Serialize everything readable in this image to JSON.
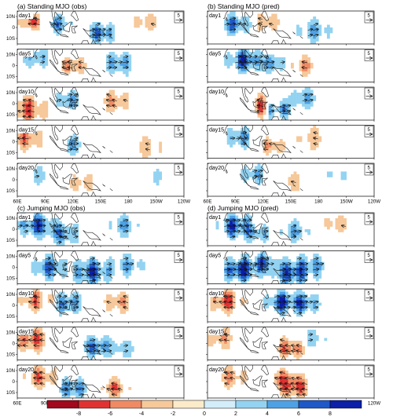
{
  "figure": {
    "colors": {
      "negative": [
        "#a1091c",
        "#e03331",
        "#f08a64",
        "#f6c89a",
        "#fcebc8"
      ],
      "neutral": "#ffffff",
      "positive": [
        "#d3eefa",
        "#93d3f1",
        "#4ea1e4",
        "#1f59c8",
        "#0c1fa8"
      ],
      "coast": "#222222",
      "vector": "#111111"
    }
  },
  "panels": [
    {
      "title": "(a) Standing MJO (obs)",
      "days": [
        "day1",
        "day5",
        "day10",
        "day15",
        "day20"
      ],
      "ref_vector": "5"
    },
    {
      "title": "(b) Standing MJO (pred)",
      "days": [
        "day1",
        "day5",
        "day10",
        "day15",
        "day20"
      ],
      "ref_vector": "5"
    },
    {
      "title": "(c) Jumping MJO (obs)",
      "days": [
        "day1",
        "day5",
        "day10",
        "day15",
        "day20"
      ],
      "ref_vector": "5"
    },
    {
      "title": "(d) Jumping MJO (pred)",
      "days": [
        "day1",
        "day5",
        "day10",
        "day15",
        "day20"
      ],
      "ref_vector": "5"
    }
  ],
  "chart_data": {
    "type": "heatmap",
    "x_ticks": [
      "60E",
      "90E",
      "120E",
      "150E",
      "180",
      "150W",
      "120W"
    ],
    "y_ticks": [
      "10N",
      "0",
      "10S"
    ],
    "colorbar": {
      "levels": [
        "-8",
        "-6",
        "-4",
        "-2",
        "0",
        "2",
        "4",
        "6",
        "8"
      ],
      "min": -10,
      "max": 10
    },
    "anomaly_centers": [
      [
        [
          [
            -6,
            75,
            5,
            7
          ],
          [
            5,
            105,
            3,
            8
          ],
          [
            6,
            150,
            -5,
            9
          ],
          [
            -3,
            200,
            5,
            10
          ]
        ],
        [
          [
            4,
            80,
            8,
            10
          ],
          [
            -5,
            120,
            0,
            8
          ],
          [
            5,
            170,
            2,
            10
          ]
        ],
        [
          [
            -6,
            70,
            -5,
            12
          ],
          [
            5,
            115,
            3,
            8
          ],
          [
            -4,
            165,
            2,
            10
          ]
        ],
        [
          [
            -5,
            70,
            3,
            10
          ],
          [
            4,
            120,
            -3,
            9
          ],
          [
            -3,
            200,
            -5,
            12
          ]
        ],
        [
          [
            3,
            85,
            4,
            9
          ],
          [
            -3,
            130,
            -3,
            10
          ],
          [
            2,
            210,
            3,
            12
          ]
        ]
      ],
      [
        [
          [
            6,
            90,
            3,
            9
          ],
          [
            -4,
            125,
            5,
            8
          ],
          [
            4,
            175,
            -3,
            11
          ]
        ],
        [
          [
            7,
            100,
            5,
            10
          ],
          [
            5,
            130,
            2,
            8
          ],
          [
            -4,
            165,
            0,
            9
          ]
        ],
        [
          [
            -6,
            120,
            -2,
            9
          ],
          [
            7,
            135,
            -5,
            8
          ],
          [
            4,
            165,
            5,
            10
          ]
        ],
        [
          [
            5,
            95,
            4,
            9
          ],
          [
            -4,
            130,
            -4,
            8
          ],
          [
            -3,
            175,
            3,
            12
          ]
        ],
        [
          [
            4,
            110,
            5,
            9
          ],
          [
            -3,
            155,
            -2,
            10
          ],
          [
            2,
            200,
            4,
            12
          ]
        ]
      ],
      [
        [
          [
            7,
            80,
            4,
            10
          ],
          [
            5,
            110,
            -4,
            10
          ],
          [
            4,
            175,
            3,
            10
          ]
        ],
        [
          [
            6,
            95,
            0,
            10
          ],
          [
            7,
            140,
            -4,
            11
          ],
          [
            4,
            180,
            2,
            10
          ]
        ],
        [
          [
            -5,
            80,
            5,
            10
          ],
          [
            6,
            115,
            2,
            9
          ],
          [
            -4,
            170,
            3,
            10
          ]
        ],
        [
          [
            -6,
            75,
            4,
            11
          ],
          [
            6,
            145,
            -3,
            9
          ],
          [
            3,
            175,
            -5,
            10
          ]
        ],
        [
          [
            -5,
            85,
            4,
            10
          ],
          [
            6,
            120,
            -6,
            9
          ],
          [
            -5,
            165,
            -6,
            9
          ]
        ]
      ],
      [
        [
          [
            7,
            90,
            3,
            10
          ],
          [
            4,
            115,
            -4,
            8
          ],
          [
            4,
            155,
            -2,
            10
          ],
          [
            -3,
            200,
            5,
            10
          ]
        ],
        [
          [
            8,
            95,
            -2,
            10
          ],
          [
            6,
            120,
            4,
            8
          ],
          [
            7,
            150,
            -5,
            11
          ],
          [
            4,
            175,
            2,
            10
          ]
        ],
        [
          [
            -6,
            80,
            4,
            10
          ],
          [
            7,
            140,
            3,
            9
          ],
          [
            6,
            165,
            2,
            9
          ]
        ],
        [
          [
            -4,
            75,
            5,
            10
          ],
          [
            -6,
            150,
            -4,
            9
          ],
          [
            3,
            175,
            4,
            10
          ]
        ],
        [
          [
            -4,
            85,
            4,
            10
          ],
          [
            -6,
            155,
            -5,
            10
          ],
          [
            -4,
            140,
            3,
            9
          ]
        ]
      ]
    ]
  }
}
